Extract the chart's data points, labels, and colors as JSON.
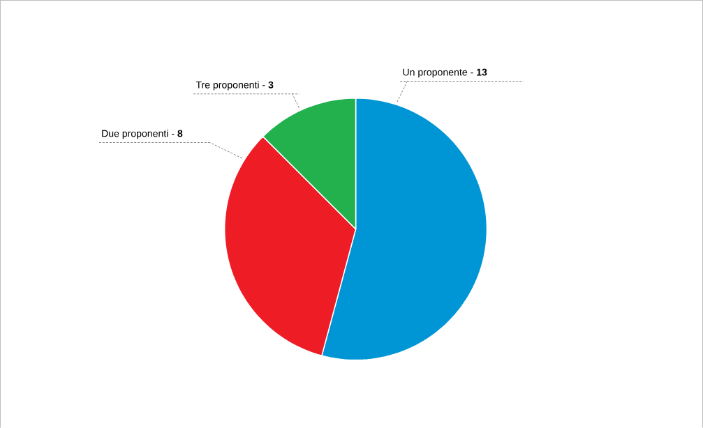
{
  "chart_data": {
    "type": "pie",
    "categories": [
      "Un proponente",
      "Due proponenti",
      "Tre proponenti"
    ],
    "values": [
      13,
      8,
      3
    ],
    "value_labels": [
      "- **13**",
      "- **8**",
      "- **3**"
    ],
    "colors": [
      "#0096d6",
      "#ee1c25",
      "#22b14c"
    ]
  }
}
